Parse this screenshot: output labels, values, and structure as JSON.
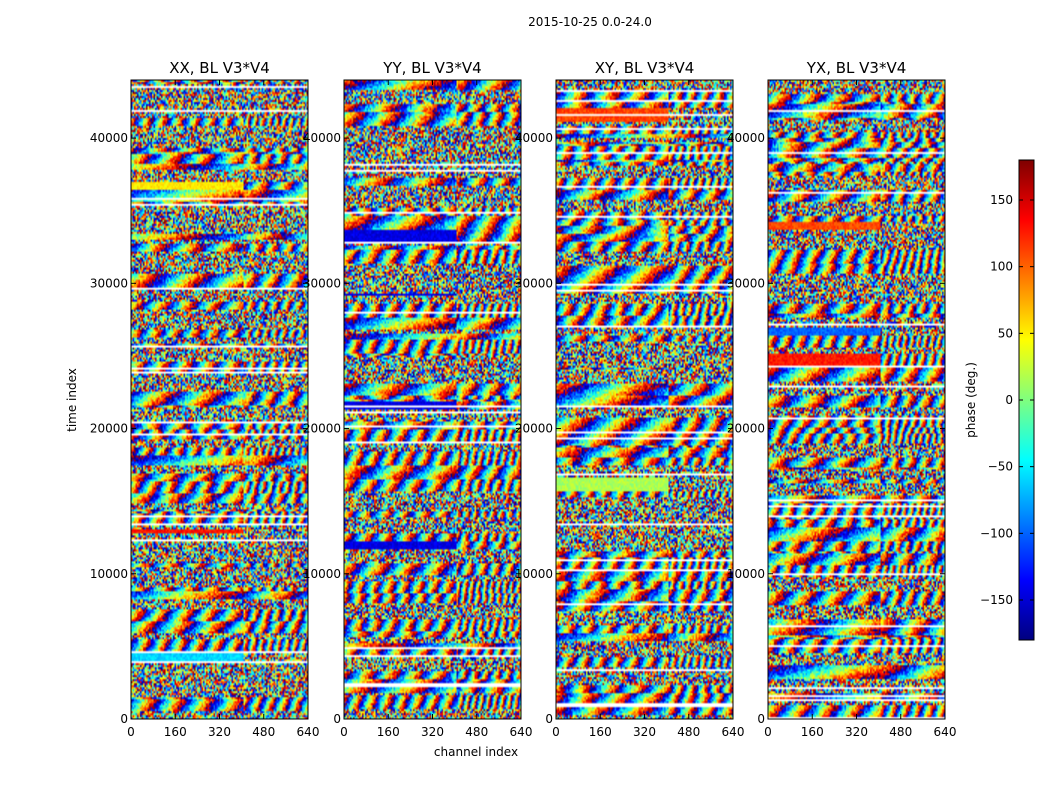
{
  "figure": {
    "suptitle": "2015-10-25 0.0-24.0"
  },
  "chart_data": {
    "type": "heatmap",
    "xlabel": "channel index",
    "ylabel": "time index",
    "xlim": [
      0,
      640
    ],
    "ylim": [
      0,
      44000
    ],
    "x_ticks": [
      "0",
      "160",
      "320",
      "480",
      "640"
    ],
    "y_ticks": [
      "0",
      "10000",
      "20000",
      "30000",
      "40000"
    ],
    "y_tick_values": [
      0,
      10000,
      20000,
      30000,
      40000
    ],
    "x_tick_values": [
      0,
      160,
      320,
      480,
      640
    ],
    "panels": [
      {
        "title": "XX, BL V3*V4"
      },
      {
        "title": "YY, BL V3*V4"
      },
      {
        "title": "XY, BL V3*V4"
      },
      {
        "title": "YX, BL V3*V4"
      }
    ],
    "colorbar": {
      "label": "phase (deg.)",
      "range": [
        -180,
        180
      ],
      "ticks": [
        "150",
        "100",
        "50",
        "0",
        "−50",
        "−100",
        "−150"
      ],
      "tick_values": [
        150,
        100,
        50,
        0,
        -50,
        -100,
        -150
      ],
      "colormap": "jet",
      "colors": [
        "#00007f",
        "#0000ff",
        "#007fff",
        "#00ffff",
        "#7fff7f",
        "#ffff00",
        "#ff7f00",
        "#ff0000",
        "#7f0000"
      ]
    }
  }
}
